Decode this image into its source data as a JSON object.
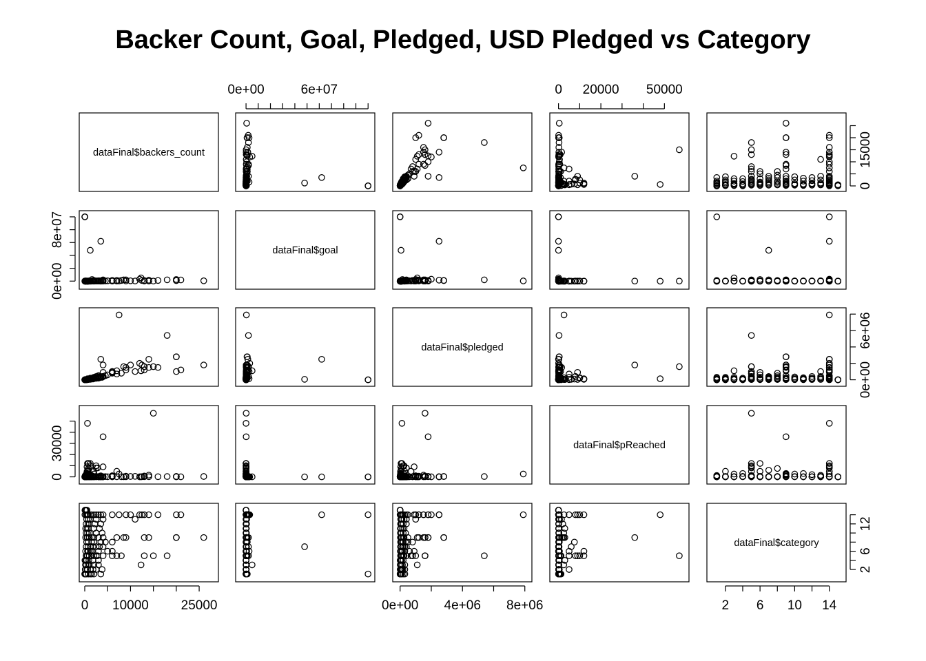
{
  "chart_data": {
    "type": "scatter",
    "subtype": "scatterplot-matrix",
    "title": "Backer Count, Goal, Pledged, USD Pledged vs Category",
    "variables": [
      {
        "label": "dataFinal$backers_count",
        "range": [
          0,
          28000
        ]
      },
      {
        "label": "dataFinal$goal",
        "range": [
          -4000000,
          101000000
        ]
      },
      {
        "label": "dataFinal$pledged",
        "range": [
          -120000,
          8100000
        ]
      },
      {
        "label": "dataFinal$pReached",
        "range": [
          -1500,
          59000
        ]
      },
      {
        "label": "dataFinal$category",
        "range": [
          0.5,
          15.3
        ]
      }
    ],
    "axes": {
      "top": [
        {
          "col": 1,
          "ticks": [
            0,
            10000000,
            20000000,
            30000000,
            40000000,
            50000000,
            60000000,
            70000000,
            80000000,
            90000000,
            100000000
          ],
          "labels": [
            {
              "value": 0,
              "text": "0e+00"
            },
            {
              "value": 60000000,
              "text": "6e+07"
            }
          ]
        },
        {
          "col": 3,
          "ticks": [
            0,
            10000,
            20000,
            30000,
            40000,
            50000
          ],
          "labels": [
            {
              "value": 0,
              "text": "0"
            },
            {
              "value": 20000,
              "text": "20000"
            },
            {
              "value": 50000,
              "text": "50000"
            }
          ]
        }
      ],
      "bottom": [
        {
          "col": 0,
          "ticks": [
            0,
            5000,
            10000,
            15000,
            20000,
            25000
          ],
          "labels": [
            {
              "value": 0,
              "text": "0"
            },
            {
              "value": 10000,
              "text": "10000"
            },
            {
              "value": 25000,
              "text": "25000"
            }
          ]
        },
        {
          "col": 2,
          "ticks": [
            0,
            2000000,
            4000000,
            6000000,
            8000000
          ],
          "labels": [
            {
              "value": 0,
              "text": "0e+00"
            },
            {
              "value": 4000000,
              "text": "4e+06"
            },
            {
              "value": 8000000,
              "text": "8e+06"
            }
          ]
        },
        {
          "col": 4,
          "ticks": [
            2,
            4,
            6,
            8,
            10,
            12,
            14
          ],
          "labels": [
            {
              "value": 2,
              "text": "2"
            },
            {
              "value": 6,
              "text": "6"
            },
            {
              "value": 10,
              "text": "10"
            },
            {
              "value": 14,
              "text": "14"
            }
          ]
        }
      ],
      "left": [
        {
          "row": 1,
          "ticks": [
            0,
            20000000,
            40000000,
            60000000,
            80000000,
            100000000
          ],
          "labels": [
            {
              "value": 0,
              "text": "0e+00"
            },
            {
              "value": 80000000,
              "text": "8e+07"
            }
          ]
        },
        {
          "row": 3,
          "ticks": [
            0,
            10000,
            20000,
            30000,
            40000,
            50000
          ],
          "labels": [
            {
              "value": 0,
              "text": "0"
            },
            {
              "value": 30000,
              "text": "30000"
            }
          ]
        }
      ],
      "right": [
        {
          "row": 0,
          "ticks": [
            0,
            5000,
            10000,
            15000,
            20000,
            25000
          ],
          "labels": [
            {
              "value": 0,
              "text": "0"
            },
            {
              "value": 15000,
              "text": "15000"
            }
          ]
        },
        {
          "row": 2,
          "ticks": [
            0,
            2000000,
            4000000,
            6000000,
            8000000
          ],
          "labels": [
            {
              "value": 0,
              "text": "0e+00"
            },
            {
              "value": 6000000,
              "text": "6e+06"
            }
          ]
        },
        {
          "row": 4,
          "ticks": [
            2,
            4,
            6,
            8,
            10,
            12,
            14
          ],
          "labels": [
            {
              "value": 2,
              "text": "2"
            },
            {
              "value": 6,
              "text": "6"
            },
            {
              "value": 12,
              "text": "12"
            }
          ]
        }
      ]
    },
    "points": [
      [
        0,
        100000000,
        0,
        0,
        1
      ],
      [
        100,
        400000,
        5000,
        1200,
        1
      ],
      [
        300,
        50000,
        20000,
        60,
        1
      ],
      [
        800,
        20000,
        50000,
        300,
        1
      ],
      [
        1500,
        30000,
        100000,
        500,
        1
      ],
      [
        2000,
        1000000,
        200000,
        150,
        1
      ],
      [
        3500,
        5000,
        300000,
        900,
        1
      ],
      [
        10,
        1000,
        500,
        50,
        1
      ],
      [
        50,
        8000,
        5000,
        70,
        1
      ],
      [
        200,
        3000,
        15000,
        400,
        1
      ],
      [
        1200,
        10000,
        80000,
        800,
        1
      ],
      [
        200,
        20000,
        12000,
        60,
        2
      ],
      [
        600,
        40000,
        40000,
        100,
        2
      ],
      [
        1200,
        60000,
        80000,
        140,
        2
      ],
      [
        2500,
        150000,
        180000,
        120,
        2
      ],
      [
        3800,
        200000,
        300000,
        150,
        2
      ],
      [
        500,
        500,
        25000,
        5000,
        2
      ],
      [
        100,
        5000,
        6000,
        120,
        2
      ],
      [
        1800,
        30000,
        120000,
        400,
        2
      ],
      [
        300,
        15000,
        20000,
        130,
        3
      ],
      [
        1000,
        50000,
        70000,
        140,
        3
      ],
      [
        2000,
        100000,
        150000,
        150,
        3
      ],
      [
        150,
        10000,
        8000,
        80,
        3
      ],
      [
        3000,
        200000,
        300000,
        150,
        3
      ],
      [
        700,
        2000,
        50000,
        2500,
        3
      ],
      [
        12300,
        5000000,
        1100000,
        22,
        3
      ],
      [
        200,
        5000,
        15000,
        300,
        4
      ],
      [
        900,
        20000,
        60000,
        300,
        4
      ],
      [
        1800,
        30000,
        100000,
        333,
        4
      ],
      [
        50,
        3000,
        3000,
        100,
        4
      ],
      [
        3000,
        70000,
        200000,
        286,
        4
      ],
      [
        400,
        1000,
        30000,
        3000,
        4
      ],
      [
        300,
        40000,
        30000,
        75,
        5
      ],
      [
        1000,
        100000,
        100000,
        100,
        5
      ],
      [
        2000,
        200000,
        200000,
        100,
        5
      ],
      [
        4000,
        500000,
        400000,
        80,
        5
      ],
      [
        8000,
        1000000,
        800000,
        80,
        5
      ],
      [
        13000,
        200000,
        1600000,
        800,
        5
      ],
      [
        6000,
        100000,
        1000000,
        1000,
        5
      ],
      [
        18000,
        2000000,
        5400000,
        270,
        5
      ],
      [
        15000,
        100000,
        1600000,
        57000,
        5
      ],
      [
        1500,
        10000,
        120000,
        1200,
        5
      ],
      [
        2500,
        30000,
        250000,
        10000,
        5
      ],
      [
        600,
        5000,
        60000,
        12000,
        5
      ],
      [
        2800,
        60000,
        400000,
        8000,
        5
      ],
      [
        7000,
        80000,
        700000,
        5000,
        5
      ],
      [
        500,
        2000,
        40000,
        9000,
        5
      ],
      [
        200,
        20000,
        15000,
        75,
        6
      ],
      [
        800,
        50000,
        60000,
        120,
        6
      ],
      [
        1600,
        2500000,
        150000,
        6,
        6
      ],
      [
        3000,
        300000,
        300000,
        100,
        6
      ],
      [
        5000,
        500000,
        600000,
        120,
        6
      ],
      [
        600,
        1000,
        50000,
        5000,
        6
      ],
      [
        1200,
        3000,
        120000,
        12000,
        6
      ],
      [
        6000,
        200000,
        900000,
        450,
        6
      ],
      [
        300,
        10000,
        25000,
        250,
        7
      ],
      [
        1200,
        48000000,
        60000,
        0,
        7
      ],
      [
        2500,
        80000,
        200000,
        250,
        7
      ],
      [
        4000,
        2000000,
        400000,
        20,
        7
      ],
      [
        700,
        1000,
        60000,
        6000,
        7
      ],
      [
        1800,
        150000,
        150000,
        100,
        7
      ],
      [
        3200,
        400000,
        300000,
        75,
        7
      ],
      [
        400,
        30000,
        30000,
        100,
        8
      ],
      [
        1500,
        100000,
        150000,
        150,
        8
      ],
      [
        3500,
        300000,
        350000,
        117,
        8
      ],
      [
        6000,
        1000000,
        800000,
        80,
        8
      ],
      [
        800,
        3000,
        80000,
        7500,
        8
      ],
      [
        2000,
        50000,
        200000,
        400,
        8
      ],
      [
        4500,
        200000,
        500000,
        250,
        8
      ],
      [
        500,
        50000,
        60000,
        120,
        9
      ],
      [
        1500,
        200000,
        200000,
        100,
        9
      ],
      [
        3000,
        500000,
        500000,
        100,
        9
      ],
      [
        7000,
        1000000,
        1100000,
        110,
        9
      ],
      [
        8500,
        2000000,
        1600000,
        80,
        9
      ],
      [
        20000,
        1000000,
        2800000,
        280,
        9
      ],
      [
        20000,
        800000,
        2800000,
        350,
        9
      ],
      [
        26000,
        500000,
        1800000,
        360,
        9
      ],
      [
        13000,
        300000,
        1600000,
        530,
        9
      ],
      [
        14000,
        100000,
        1500000,
        1500,
        9
      ],
      [
        9000,
        200000,
        1200000,
        600,
        9
      ],
      [
        2000,
        10000,
        250000,
        2500,
        9
      ],
      [
        4000,
        100000,
        1800000,
        36000,
        9
      ],
      [
        1000,
        5000,
        100000,
        2000,
        9
      ],
      [
        600,
        2000,
        50000,
        3000,
        9
      ],
      [
        200,
        10000,
        20000,
        200,
        9
      ],
      [
        300,
        10000,
        20000,
        200,
        10
      ],
      [
        1000,
        50000,
        70000,
        140,
        10
      ],
      [
        2500,
        100000,
        200000,
        200,
        10
      ],
      [
        3800,
        300000,
        350000,
        117,
        10
      ],
      [
        600,
        2000,
        50000,
        2500,
        10
      ],
      [
        200,
        20000,
        15000,
        75,
        11
      ],
      [
        800,
        60000,
        50000,
        83,
        11
      ],
      [
        2000,
        150000,
        150000,
        100,
        11
      ],
      [
        3200,
        250000,
        250000,
        100,
        11
      ],
      [
        500,
        1000,
        30000,
        3000,
        11
      ],
      [
        300,
        30000,
        30000,
        100,
        12
      ],
      [
        1000,
        80000,
        100000,
        125,
        12
      ],
      [
        2200,
        200000,
        200000,
        100,
        12
      ],
      [
        3500,
        400000,
        400000,
        100,
        12
      ],
      [
        700,
        3000,
        60000,
        2000,
        12
      ],
      [
        400,
        40000,
        40000,
        100,
        13
      ],
      [
        1200,
        100000,
        120000,
        120,
        13
      ],
      [
        2500,
        300000,
        250000,
        83,
        13
      ],
      [
        4000,
        500000,
        400000,
        80,
        13
      ],
      [
        11000,
        200000,
        1000000,
        500,
        13
      ],
      [
        800,
        5000,
        70000,
        1400,
        13
      ],
      [
        50,
        100000000,
        500,
        0,
        14
      ],
      [
        500,
        50000,
        50000,
        100,
        14
      ],
      [
        1500,
        200000,
        200000,
        100,
        14
      ],
      [
        3000,
        500000,
        500000,
        100,
        14
      ],
      [
        6000,
        1000000,
        1000000,
        100,
        14
      ],
      [
        9000,
        2000000,
        1500000,
        75,
        14
      ],
      [
        12000,
        3000000,
        2000000,
        67,
        14
      ],
      [
        14000,
        1500000,
        2500000,
        167,
        14
      ],
      [
        12500,
        1000000,
        1800000,
        180,
        14
      ],
      [
        7500,
        300000,
        7900000,
        2600,
        14
      ],
      [
        10000,
        500000,
        1800000,
        360,
        14
      ],
      [
        20000,
        2500000,
        1000000,
        40,
        14
      ],
      [
        21000,
        1800000,
        1200000,
        67,
        14
      ],
      [
        16000,
        1000000,
        1500000,
        150,
        14
      ],
      [
        13000,
        800000,
        1200000,
        150,
        14
      ],
      [
        3500,
        62000000,
        2500000,
        4,
        14
      ],
      [
        300,
        10000,
        30000,
        300,
        14
      ],
      [
        600,
        2000,
        120000,
        48000,
        14
      ],
      [
        2000,
        60000,
        300000,
        5000,
        14
      ],
      [
        1200,
        20000,
        200000,
        10000,
        14
      ],
      [
        2500,
        50000,
        400000,
        8000,
        14
      ],
      [
        800,
        5000,
        100000,
        12000,
        14
      ],
      [
        4000,
        100000,
        900000,
        9000,
        14
      ],
      [
        50,
        5000,
        500,
        10,
        15
      ],
      [
        100,
        10000,
        1000,
        10,
        15
      ],
      [
        200,
        5000,
        1500,
        30,
        15
      ],
      [
        300,
        20000,
        3000,
        15,
        15
      ],
      [
        500,
        30000,
        5000,
        17,
        15
      ]
    ]
  }
}
